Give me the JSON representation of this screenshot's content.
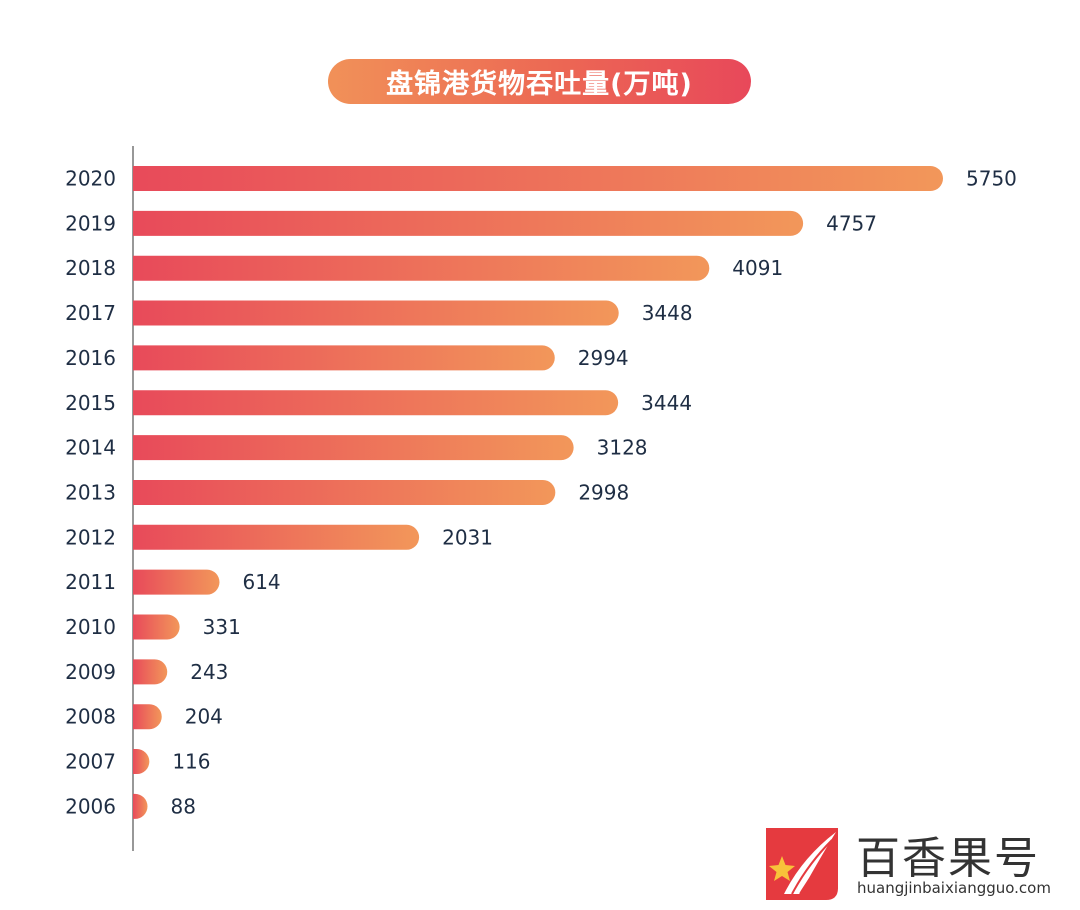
{
  "title": "盘锦港货物吞吐量(万吨)",
  "chart_data": {
    "type": "bar",
    "orientation": "horizontal",
    "title": "盘锦港货物吞吐量(万吨)",
    "categories": [
      "2020",
      "2019",
      "2018",
      "2017",
      "2016",
      "2015",
      "2014",
      "2013",
      "2012",
      "2011",
      "2010",
      "2009",
      "2008",
      "2007",
      "2006"
    ],
    "values": [
      5750,
      4757,
      4091,
      3448,
      2994,
      3444,
      3128,
      2998,
      2031,
      614,
      331,
      243,
      204,
      116,
      88
    ],
    "xlabel": "",
    "ylabel": "",
    "xlim": [
      0,
      5750
    ],
    "grid": false,
    "colors": {
      "bar_start": "#e84a5a",
      "bar_end": "#f2975a",
      "axis": "#777777",
      "text": "#1f2e44"
    }
  },
  "watermark": {
    "name": "百香果号",
    "url": "huangjinbaixiangguo.com"
  }
}
